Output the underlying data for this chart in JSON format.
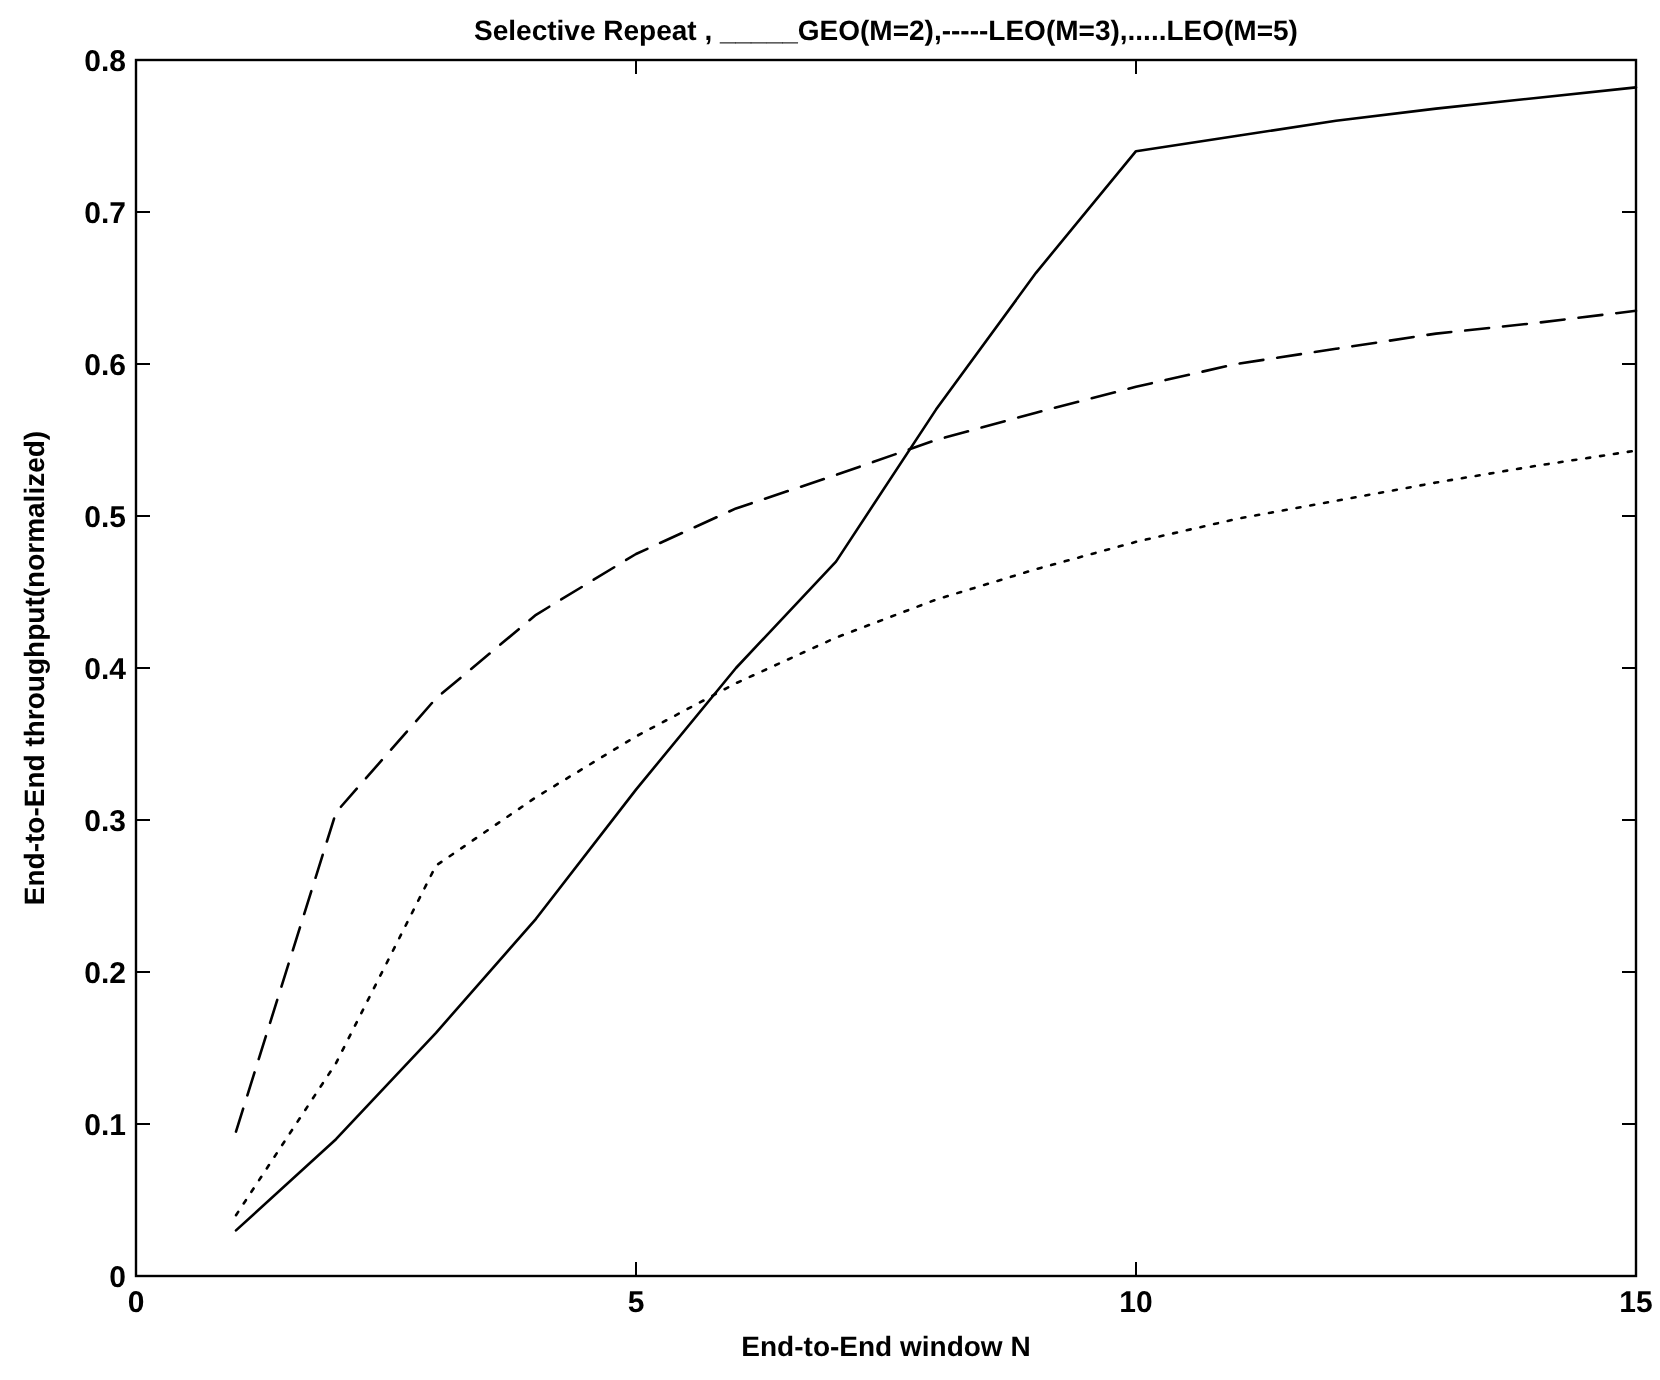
{
  "chart_data": {
    "type": "line",
    "title": "Selective Repeat ,  _____GEO(M=2),-----LEO(M=3),.....LEO(M=5)",
    "xlabel": "End-to-End window N",
    "ylabel": "End-to-End throughput(normalized)",
    "x": [
      1,
      2,
      3,
      4,
      5,
      6,
      7,
      8,
      9,
      10,
      11,
      12,
      13,
      14,
      15
    ],
    "xlim": [
      0,
      15
    ],
    "xticks": [
      0,
      5,
      10,
      15
    ],
    "ylim": [
      0,
      0.8
    ],
    "yticks": [
      0,
      0.1,
      0.2,
      0.3,
      0.4,
      0.5,
      0.6,
      0.7,
      0.8
    ],
    "grid": false,
    "series": [
      {
        "color": "#000000",
        "line_style": "solid",
        "values": [
          0.03,
          0.09,
          0.16,
          0.235,
          0.32,
          0.4,
          0.47,
          0.57,
          0.66,
          0.74,
          0.75,
          0.76,
          0.768,
          0.775,
          0.782
        ]
      },
      {
        "color": "#000000",
        "line_style": "dashed",
        "values": [
          0.095,
          0.305,
          0.38,
          0.435,
          0.475,
          0.505,
          0.527,
          0.55,
          0.568,
          0.585,
          0.6,
          0.61,
          0.62,
          0.627,
          0.635
        ]
      },
      {
        "color": "#000000",
        "line_style": "dotted",
        "values": [
          0.04,
          0.14,
          0.27,
          0.315,
          0.355,
          0.39,
          0.42,
          0.445,
          0.465,
          0.483,
          0.498,
          0.51,
          0.522,
          0.533,
          0.543
        ]
      }
    ]
  }
}
